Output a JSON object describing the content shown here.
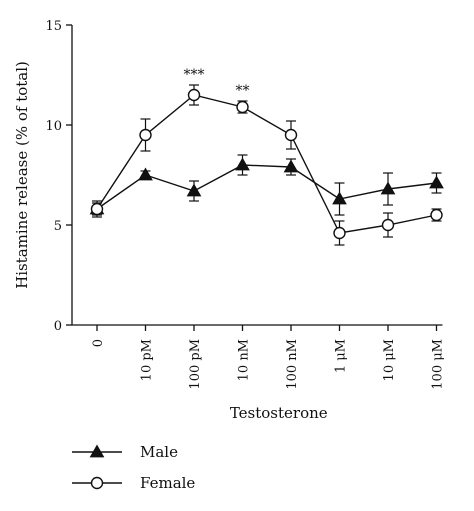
{
  "chart_data": {
    "type": "line",
    "xlabel": "Testosterone",
    "ylabel": "Histamine release (% of total)",
    "ylim": [
      0,
      15
    ],
    "yticks": [
      0,
      5,
      10,
      15
    ],
    "categories": [
      "0",
      "10 pM",
      "100 pM",
      "10 nM",
      "100 nM",
      "1 μM",
      "10 μM",
      "100 μM"
    ],
    "grid": false,
    "legend_position": "bottom-left",
    "series": [
      {
        "name": "Male",
        "marker": "filled-triangle",
        "color": "#111111",
        "values": [
          5.8,
          7.5,
          6.7,
          8.0,
          7.9,
          6.3,
          6.8,
          7.1
        ],
        "errors": [
          0.3,
          0.2,
          0.5,
          0.5,
          0.4,
          0.8,
          0.8,
          0.5
        ]
      },
      {
        "name": "Female",
        "marker": "open-circle",
        "color": "#111111",
        "values": [
          5.8,
          9.5,
          11.5,
          10.9,
          9.5,
          4.6,
          5.0,
          5.5
        ],
        "errors": [
          0.4,
          0.8,
          0.5,
          0.3,
          0.7,
          0.6,
          0.6,
          0.3
        ]
      }
    ],
    "annotations": [
      {
        "category": "100 pM",
        "text": "***"
      },
      {
        "category": "10 nM",
        "text": "**"
      }
    ]
  }
}
